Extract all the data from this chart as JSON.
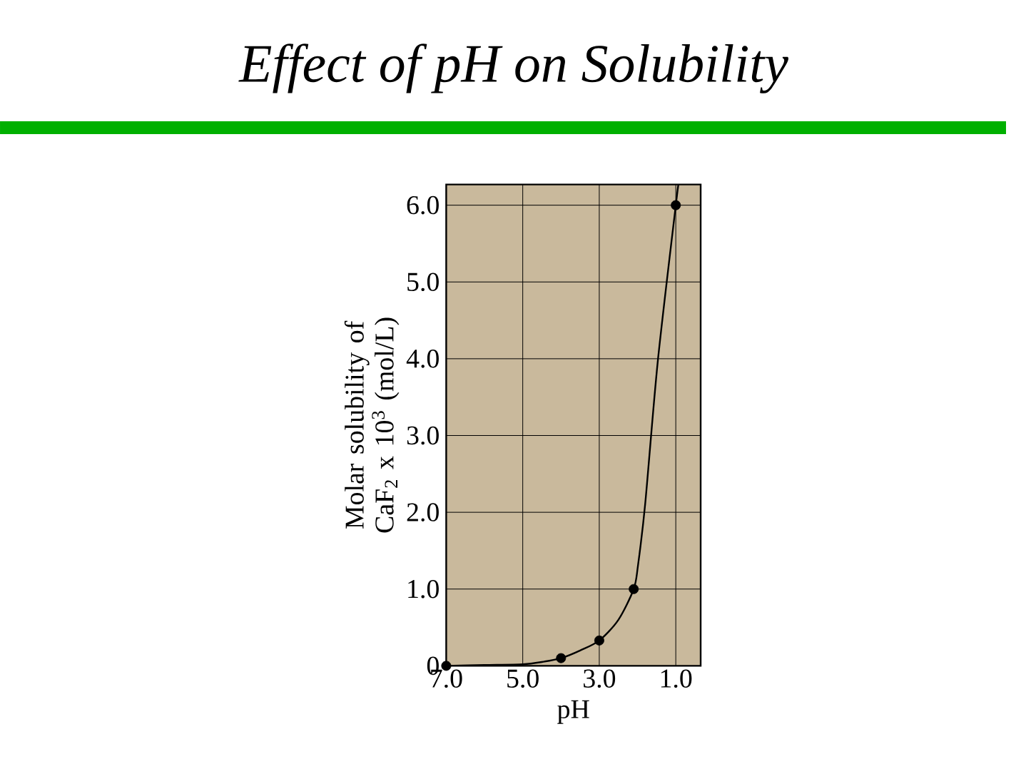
{
  "chart_data": {
    "type": "scatter",
    "title": "*Effect of pH on Solubility*",
    "xlabel": "pH",
    "ylabel": "Molar solubility of CaF$_{2}$ x 10$^{3}$ (mol/L)",
    "xlim": [
      7,
      0.35
    ],
    "ylim": [
      0,
      6.27
    ],
    "xticks": [
      {
        "value": 7,
        "label": "7.0"
      },
      {
        "value": 5,
        "label": "5.0"
      },
      {
        "value": 3,
        "label": "3.0"
      },
      {
        "value": 1,
        "label": "1.0"
      }
    ],
    "yticks": [
      0,
      {
        "value": 1,
        "label": "1.0"
      },
      {
        "value": 2,
        "label": "2.0"
      },
      {
        "value": 3,
        "label": "3.0"
      },
      {
        "value": 4,
        "label": "4.0"
      },
      {
        "value": 5,
        "label": "5.0"
      },
      {
        "value": 6,
        "label": "6.0"
      }
    ],
    "grid": true,
    "series": [
      {
        "type": "line",
        "color": "#000000",
        "marker": "none",
        "line_style": "solid",
        "x": [
          7,
          6,
          5,
          4.5,
          4,
          3.5,
          3,
          2.5,
          2.1,
          1.99,
          1.8,
          1.47,
          1,
          0.93
        ],
        "values": [
          0,
          0.01,
          0.02,
          0.05,
          0.1,
          0.2,
          0.33,
          0.6,
          1.0,
          1.3,
          2.11,
          3.97,
          6.0,
          6.27
        ]
      },
      {
        "type": "scatter",
        "color": "#000000",
        "marker": "circle",
        "x": [
          7,
          4,
          3,
          2.1,
          1
        ],
        "values": [
          0,
          0.1,
          0.33,
          1.0,
          6.0
        ]
      }
    ]
  }
}
